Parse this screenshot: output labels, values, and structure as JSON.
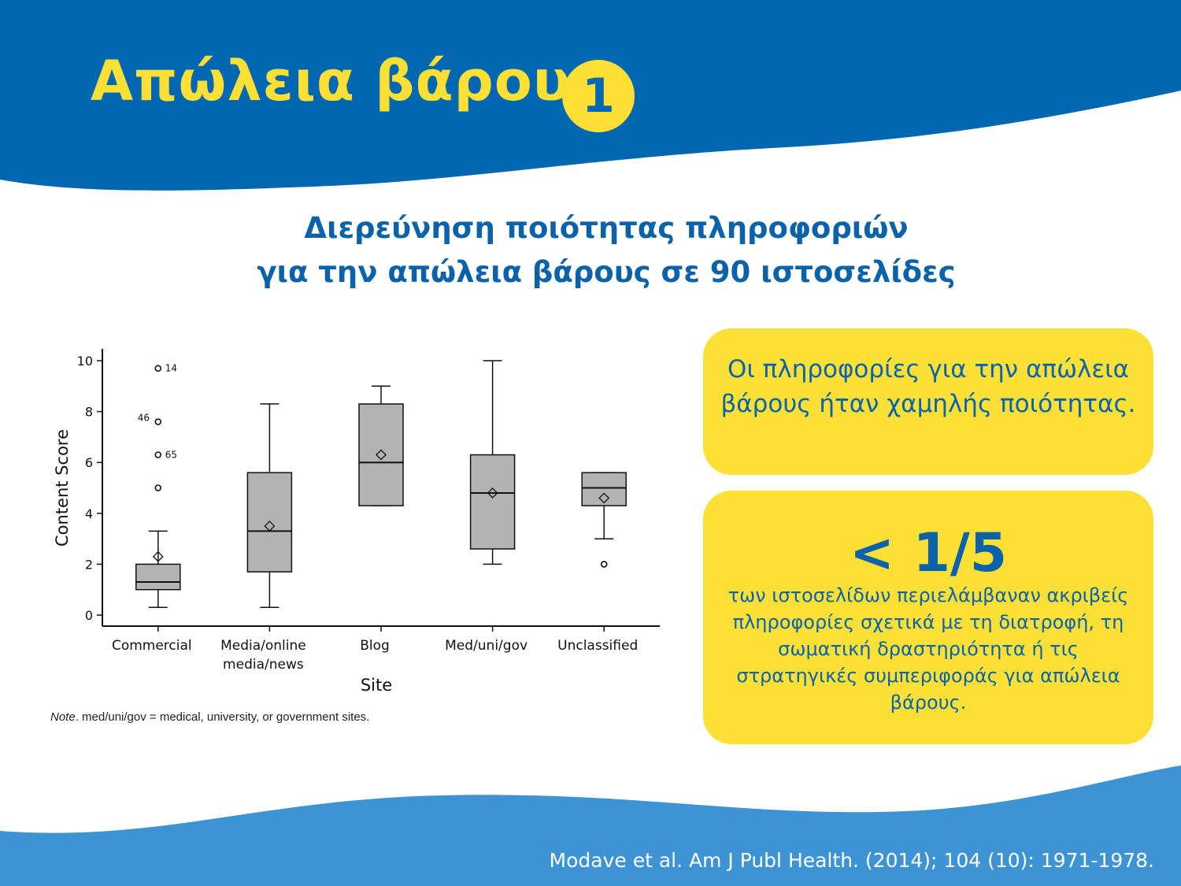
{
  "header": {
    "title": "Απώλεια βάρους",
    "badge_number": "1"
  },
  "subtitle": {
    "line1": "Διερεύνηση ποιότητας πληροφοριών",
    "line2": "για την απώλεια βάρους σε 90 ιστοσελίδες"
  },
  "card1": {
    "text": "Οι πληροφορίες για την απώλεια βάρους ήταν χαμηλής ποιότητας."
  },
  "card2": {
    "stat": "< 1/5",
    "text": "των ιστοσελίδων περιελάμβαναν ακριβείς πληροφορίες σχετικά με τη διατροφή, τη σωματική δραστηριότητα ή τις στρατηγικές συμπεριφοράς για απώλεια βάρους."
  },
  "note": {
    "label": "Note",
    "text": ". med/uni/gov = medical, university, or government sites."
  },
  "citation": "Modave et al. Am J Publ Health. (2014); 104 (10): 1971-1978.",
  "colors": {
    "dark_blue": "#0067b0",
    "light_blue": "#3d93d3",
    "yellow": "#fde036",
    "box_fill": "#b3b3b3"
  },
  "chart_data": {
    "type": "boxplot",
    "xlabel": "Site",
    "ylabel": "Content Score",
    "ylim": [
      0,
      10
    ],
    "yticks": [
      0,
      2,
      4,
      6,
      8,
      10
    ],
    "categories": [
      {
        "label": [
          "Commercial"
        ],
        "whisker_low": 0.3,
        "q1": 1.0,
        "median": 1.3,
        "q3": 2.0,
        "whisker_high": 3.3,
        "mean": 2.3,
        "outliers": [
          {
            "y": 5.0,
            "label": ""
          },
          {
            "y": 6.3,
            "label": "65"
          },
          {
            "y": 7.6,
            "label": "46"
          },
          {
            "y": 9.7,
            "label": "14"
          }
        ]
      },
      {
        "label": [
          "Media/online",
          "media/news"
        ],
        "whisker_low": 0.3,
        "q1": 1.7,
        "median": 3.3,
        "q3": 5.6,
        "whisker_high": 8.3,
        "mean": 3.5,
        "outliers": []
      },
      {
        "label": [
          "Blog"
        ],
        "whisker_low": 4.3,
        "q1": 4.3,
        "median": 6.0,
        "q3": 8.3,
        "whisker_high": 9.0,
        "mean": 6.3,
        "outliers": []
      },
      {
        "label": [
          "Med/uni/gov"
        ],
        "whisker_low": 2.0,
        "q1": 2.6,
        "median": 4.8,
        "q3": 6.3,
        "whisker_high": 10.0,
        "mean": 4.8,
        "outliers": []
      },
      {
        "label": [
          "Unclassified"
        ],
        "whisker_low": 3.0,
        "q1": 4.3,
        "median": 5.0,
        "q3": 5.6,
        "whisker_high": 5.6,
        "mean": 4.6,
        "outliers": [
          {
            "y": 2.0,
            "label": ""
          }
        ]
      }
    ]
  }
}
